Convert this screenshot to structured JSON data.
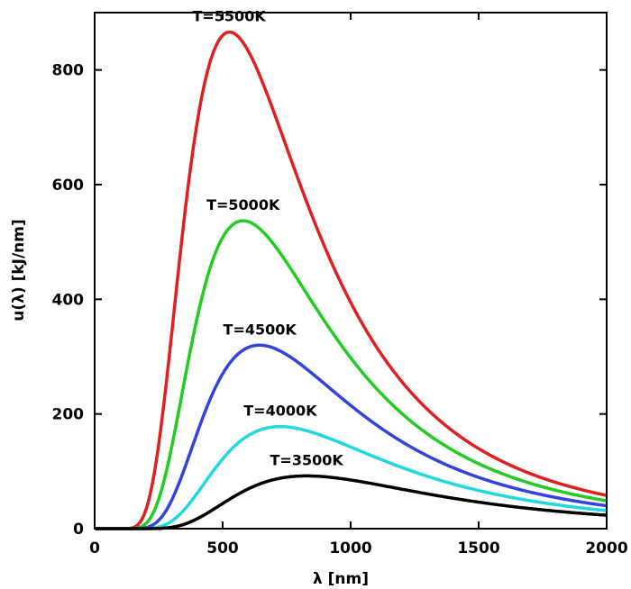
{
  "chart_data": {
    "type": "line",
    "xlabel": "λ [nm]",
    "ylabel": "u(λ) [kJ/nm]",
    "xlim": [
      0,
      2000
    ],
    "ylim": [
      0,
      900
    ],
    "xticks": [
      0,
      500,
      1000,
      1500,
      2000
    ],
    "yticks": [
      0,
      200,
      400,
      600,
      800
    ],
    "grid": false,
    "series": [
      {
        "name": "T=5500K",
        "temperature": 5500,
        "color": "#e02020",
        "peak": {
          "x": 525,
          "y": 866
        }
      },
      {
        "name": "T=5000K",
        "temperature": 5000,
        "color": "#22cc22",
        "peak": {
          "x": 580,
          "y": 537
        }
      },
      {
        "name": "T=4500K",
        "temperature": 4500,
        "color": "#3344dd",
        "peak": {
          "x": 645,
          "y": 320
        }
      },
      {
        "name": "T=4000K",
        "temperature": 4000,
        "color": "#22d8e0",
        "peak": {
          "x": 725,
          "y": 178
        }
      },
      {
        "name": "T=3500K",
        "temperature": 3500,
        "color": "#000000",
        "peak": {
          "x": 828,
          "y": 92
        }
      }
    ]
  }
}
